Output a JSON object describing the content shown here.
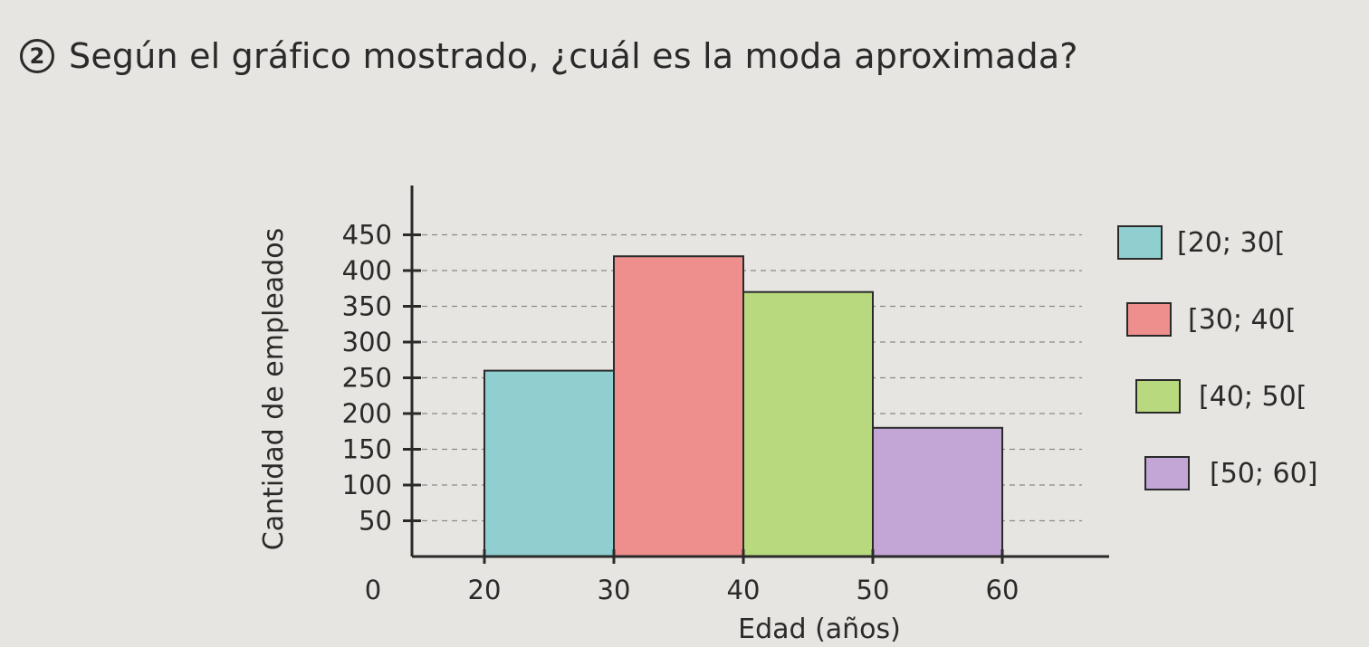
{
  "question": {
    "number": "2",
    "text": "Según el gráfico mostrado, ¿cuál es la moda aproximada?"
  },
  "chart_data": {
    "type": "bar",
    "xlabel": "Edad (años)",
    "ylabel": "Cantidad de empleados",
    "x_ticks": [
      "20",
      "30",
      "40",
      "50",
      "60"
    ],
    "y_ticks": [
      "450",
      "400",
      "350",
      "300",
      "250",
      "200",
      "150",
      "100",
      "50"
    ],
    "origin_label": "0",
    "ylim": [
      0,
      480
    ],
    "xlim": [
      20,
      60
    ],
    "grid": true,
    "legend_position": "right",
    "bins": [
      {
        "label": "[20; 30[",
        "x0": 20,
        "x1": 30,
        "value": 260,
        "color": "#8fcfd0"
      },
      {
        "label": "[30; 40[",
        "x0": 30,
        "x1": 40,
        "value": 420,
        "color": "#ee8f8d"
      },
      {
        "label": "[40; 50[",
        "x0": 40,
        "x1": 50,
        "value": 370,
        "color": "#b9d97e"
      },
      {
        "label": "[50; 60]",
        "x0": 50,
        "x1": 60,
        "value": 180,
        "color": "#c3a5d6"
      }
    ]
  }
}
